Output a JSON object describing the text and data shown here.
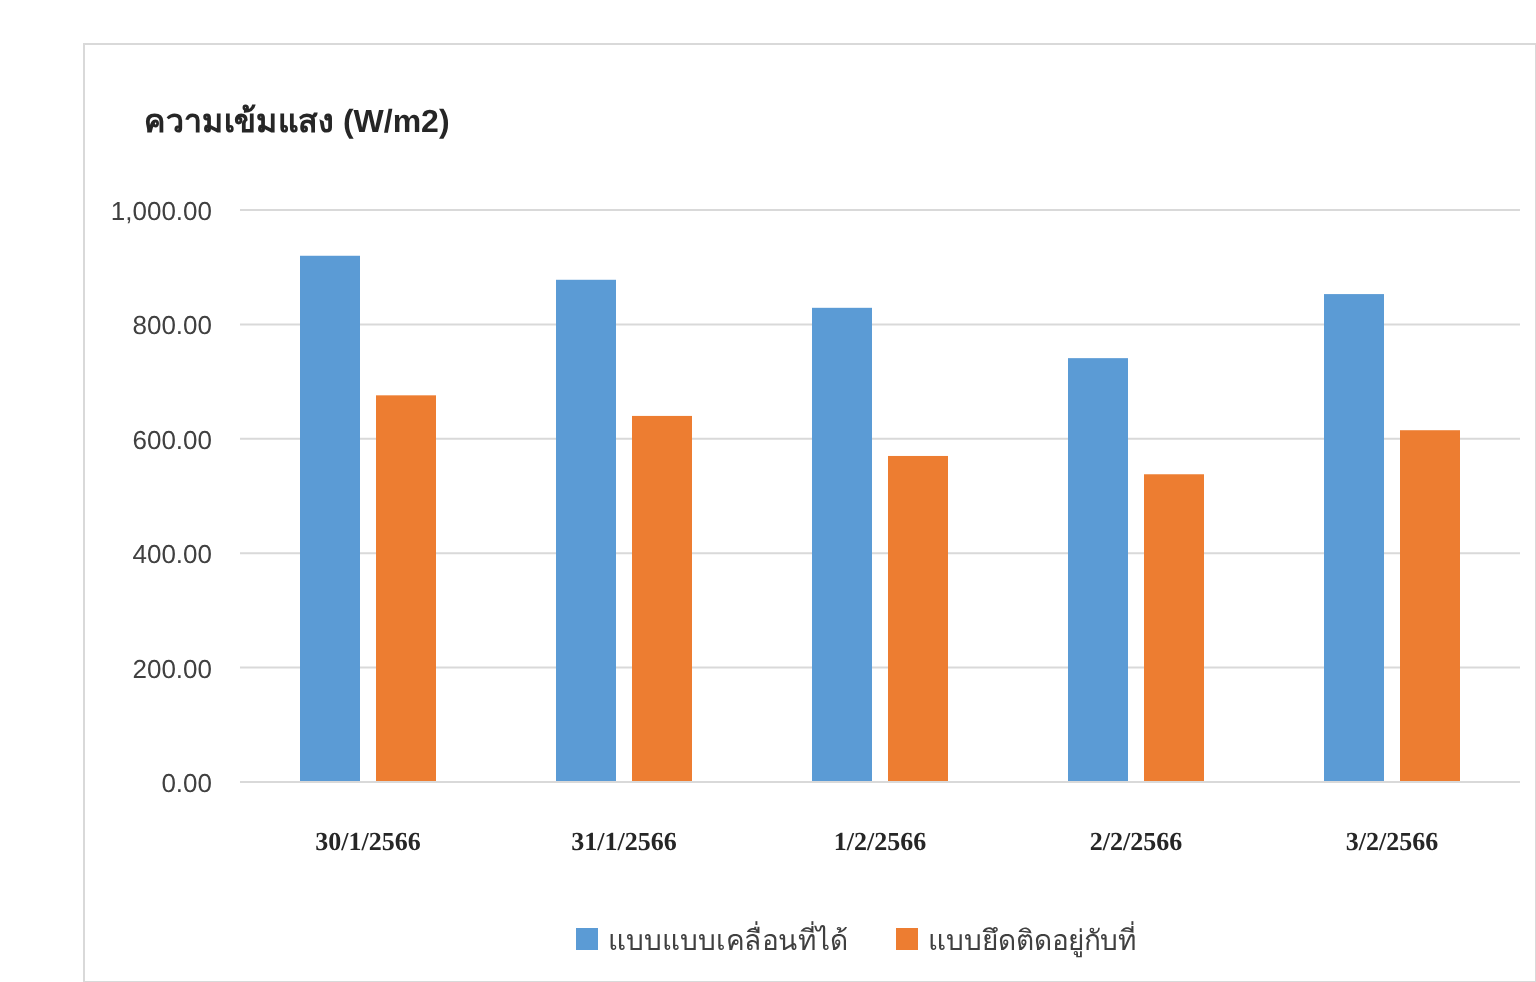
{
  "chart_data": {
    "type": "bar",
    "ylabel": "ความเข้มแสง (W/m2)",
    "categories": [
      "30/1/2566",
      "31/1/2566",
      "1/2/2566",
      "2/2/2566",
      "3/2/2566"
    ],
    "series": [
      {
        "name": "แบบแบบเคลื่อนที่ได้",
        "color": "#5b9bd5",
        "values": [
          920,
          878,
          829,
          741,
          853
        ]
      },
      {
        "name": "แบบยึดติดอยู่กับที่",
        "color": "#ed7d31",
        "values": [
          676,
          640,
          570,
          538,
          615
        ]
      }
    ],
    "ylim": [
      0,
      1000
    ],
    "yticks": [
      {
        "value": 0,
        "label": "0.00"
      },
      {
        "value": 200,
        "label": "200.00"
      },
      {
        "value": 400,
        "label": "400.00"
      },
      {
        "value": 600,
        "label": "600.00"
      },
      {
        "value": 800,
        "label": "800.00"
      },
      {
        "value": 1000,
        "label": "1,000.00"
      }
    ],
    "grid": "y",
    "legend": "bottom"
  }
}
